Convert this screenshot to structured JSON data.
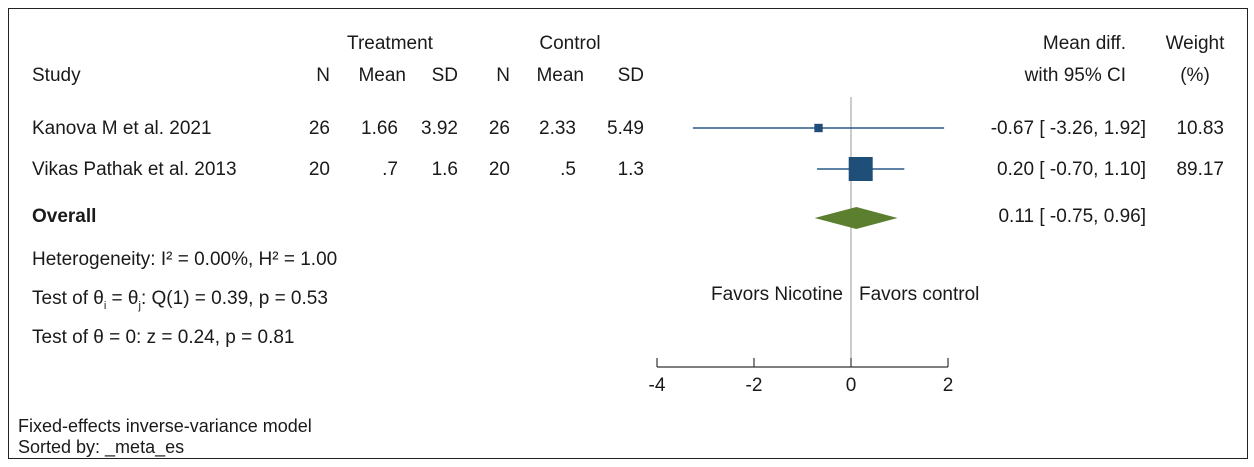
{
  "chart_data": {
    "type": "forest",
    "headers": {
      "study": "Study",
      "treatment": "Treatment",
      "control": "Control",
      "n": "N",
      "mean": "Mean",
      "sd": "SD",
      "effect_line1": "Mean diff.",
      "effect_line2": "with 95% CI",
      "weight_line1": "Weight",
      "weight_line2": "(%)"
    },
    "studies": [
      {
        "name": "Kanova M et al. 2021",
        "t_n": "26",
        "t_mean": "1.66",
        "t_sd": "3.92",
        "c_n": "26",
        "c_mean": "2.33",
        "c_sd": "5.49",
        "estimate": -0.67,
        "ci_low": -3.26,
        "ci_high": 1.92,
        "ci_text": "-0.67 [ -3.26,  1.92]",
        "weight": 10.83,
        "weight_text": "10.83"
      },
      {
        "name": "Vikas Pathak et al. 2013",
        "t_n": "20",
        "t_mean": ".7",
        "t_sd": "1.6",
        "c_n": "20",
        "c_mean": ".5",
        "c_sd": "1.3",
        "estimate": 0.2,
        "ci_low": -0.7,
        "ci_high": 1.1,
        "ci_text": "0.20 [ -0.70,  1.10]",
        "weight": 89.17,
        "weight_text": "89.17"
      }
    ],
    "overall": {
      "label": "Overall",
      "estimate": 0.11,
      "ci_low": -0.75,
      "ci_high": 0.96,
      "ci_text": "0.11 [ -0.75,  0.96]"
    },
    "stats": {
      "heterogeneity": "Heterogeneity: I² = 0.00%, H² = 1.00",
      "test_theta_prefix": "Test of θ",
      "test_theta_sub_i": "i",
      "test_theta_eq": " = θ",
      "test_theta_sub_j": "j",
      "test_theta_rest": ": Q(1) = 0.39, p = 0.53",
      "test_zero": "Test of θ = 0: z = 0.24, p = 0.81"
    },
    "favors_left": "Favors Nicotine",
    "favors_right": "Favors control",
    "x_ticks": [
      "-4",
      "-2",
      "0",
      "2"
    ],
    "x_tick_values": [
      -4,
      -2,
      0,
      2
    ],
    "xlim": [
      -4,
      2
    ],
    "reference_line": 0,
    "notes": [
      "Fixed-effects inverse-variance model",
      "Sorted by: _meta_es"
    ],
    "colors": {
      "study_marker": "#1f4e79",
      "ci_line": "#2a5a8a",
      "overall": "#5b7e2f",
      "ref_line": "#999999",
      "axis": "#333333"
    }
  }
}
